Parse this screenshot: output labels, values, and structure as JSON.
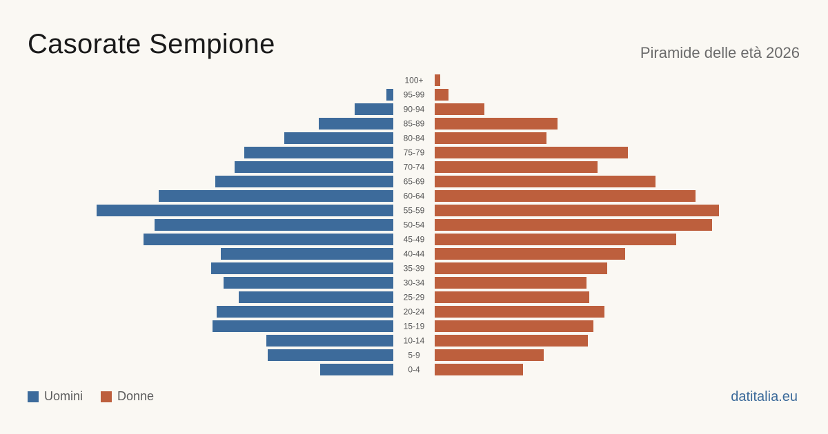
{
  "header": {
    "title": "Casorate Sempione",
    "subtitle": "Piramide delle età 2026"
  },
  "legend": {
    "men_label": "Uomini",
    "women_label": "Donne"
  },
  "brand": "datitalia.eu",
  "colors": {
    "men": "#3d6b9b",
    "women": "#bd5f3d",
    "background": "#faf8f3"
  },
  "chart_data": {
    "type": "bar",
    "orientation": "horizontal-pyramid",
    "categories": [
      "100+",
      "95-99",
      "90-94",
      "85-89",
      "80-84",
      "75-79",
      "70-74",
      "65-69",
      "60-64",
      "55-59",
      "50-54",
      "45-49",
      "40-44",
      "35-39",
      "30-34",
      "25-29",
      "20-24",
      "15-19",
      "10-14",
      "5-9",
      "0-4"
    ],
    "series": [
      {
        "name": "Uomini",
        "values": [
          0,
          5,
          28,
          54,
          79,
          108,
          115,
          129,
          170,
          215,
          173,
          181,
          125,
          132,
          123,
          112,
          128,
          131,
          92,
          91,
          53
        ]
      },
      {
        "name": "Donne",
        "values": [
          4,
          10,
          36,
          89,
          81,
          140,
          118,
          160,
          189,
          206,
          201,
          175,
          138,
          125,
          110,
          112,
          123,
          115,
          111,
          79,
          64
        ]
      }
    ],
    "xlim": [
      0,
      215
    ],
    "grid": false,
    "legend_position": "bottom-left"
  }
}
